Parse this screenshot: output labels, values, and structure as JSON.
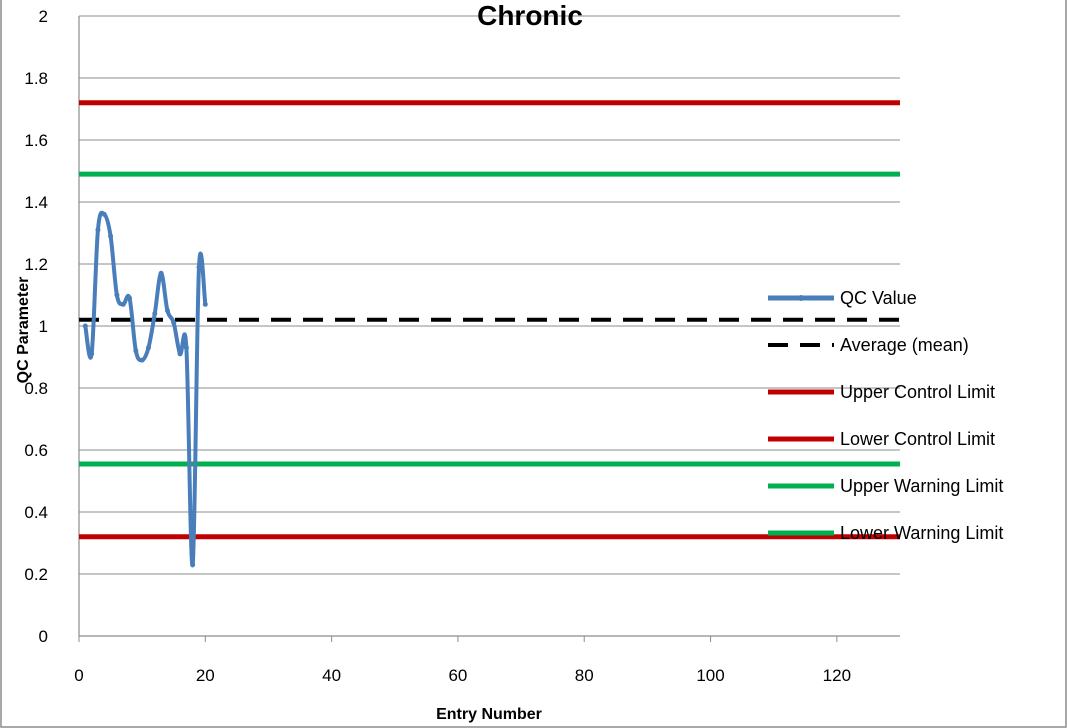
{
  "chart_data": {
    "type": "line",
    "title": "Chronic",
    "xlabel": "Entry Number",
    "ylabel": "QC Parameter",
    "xlim": [
      0,
      130
    ],
    "ylim": [
      0,
      2
    ],
    "xticks": [
      0,
      20,
      40,
      60,
      80,
      100,
      120
    ],
    "yticks": [
      0,
      0.2,
      0.4,
      0.6,
      0.8,
      1,
      1.2,
      1.4,
      1.6,
      1.8,
      2
    ],
    "xtick_labels": [
      "0",
      "20",
      "40",
      "60",
      "80",
      "100",
      "120"
    ],
    "ytick_labels": [
      "0",
      "0.2",
      "0.4",
      "0.6",
      "0.8",
      "1",
      "1.2",
      "1.4",
      "1.6",
      "1.8",
      "2"
    ],
    "grid": "horizontal",
    "legend_position": "right",
    "series": [
      {
        "name": "QC Value",
        "color": "#4a7ebb",
        "style": "line-markers",
        "x": [
          1,
          2,
          3,
          4,
          5,
          6,
          7,
          8,
          9,
          10,
          11,
          12,
          13,
          14,
          15,
          16,
          17,
          18,
          19,
          20
        ],
        "y": [
          1.0,
          0.91,
          1.31,
          1.36,
          1.29,
          1.1,
          1.07,
          1.09,
          0.92,
          0.89,
          0.93,
          1.04,
          1.17,
          1.05,
          1.01,
          0.91,
          0.93,
          0.23,
          1.19,
          1.07
        ]
      },
      {
        "name": "Average (mean)",
        "color": "#000000",
        "style": "dashed",
        "y_const": 1.02
      },
      {
        "name": "Upper Control Limit",
        "color": "#c00000",
        "style": "solid",
        "y_const": 1.72
      },
      {
        "name": "Lower Control Limit",
        "color": "#c00000",
        "style": "solid",
        "y_const": 0.32
      },
      {
        "name": "Upper Warning Limit",
        "color": "#00b050",
        "style": "solid",
        "y_const": 1.49
      },
      {
        "name": "Lower Warning Limit",
        "color": "#00b050",
        "style": "solid",
        "y_const": 0.555
      }
    ]
  }
}
